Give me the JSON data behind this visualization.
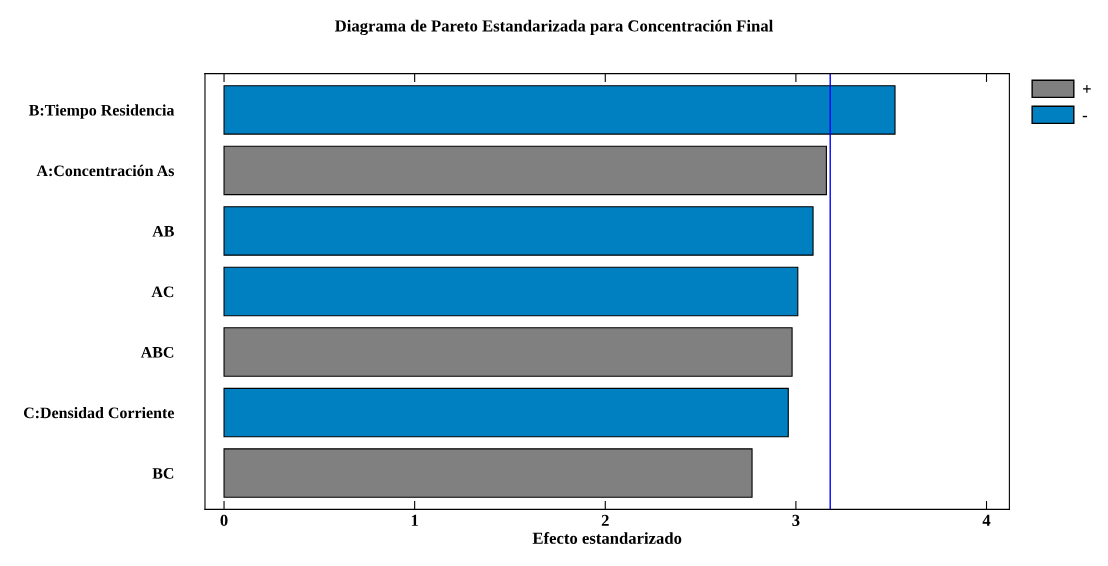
{
  "chart_data": {
    "type": "bar",
    "orientation": "horizontal",
    "title": "Diagrama de Pareto Estandarizada para Concentración Final",
    "xlabel": "Efecto estandarizado",
    "categories": [
      "B:Tiempo Residencia",
      "A:Concentración As",
      "AB",
      "AC",
      "ABC",
      "C:Densidad Corriente",
      "BC"
    ],
    "series": [
      {
        "name": "+",
        "color": "#808080",
        "values": [
          null,
          3.16,
          null,
          null,
          2.98,
          null,
          2.77
        ]
      },
      {
        "name": "-",
        "color": "#0080c0",
        "values": [
          3.52,
          null,
          3.09,
          3.01,
          null,
          2.96,
          null
        ]
      }
    ],
    "xlim": [
      -0.1,
      4.12
    ],
    "xticks": [
      0,
      1,
      2,
      3,
      4
    ],
    "ref_lines": [
      {
        "axis": "x",
        "value": 3.18,
        "color": "#0000ff"
      }
    ],
    "grid": false,
    "legend": "top right"
  }
}
